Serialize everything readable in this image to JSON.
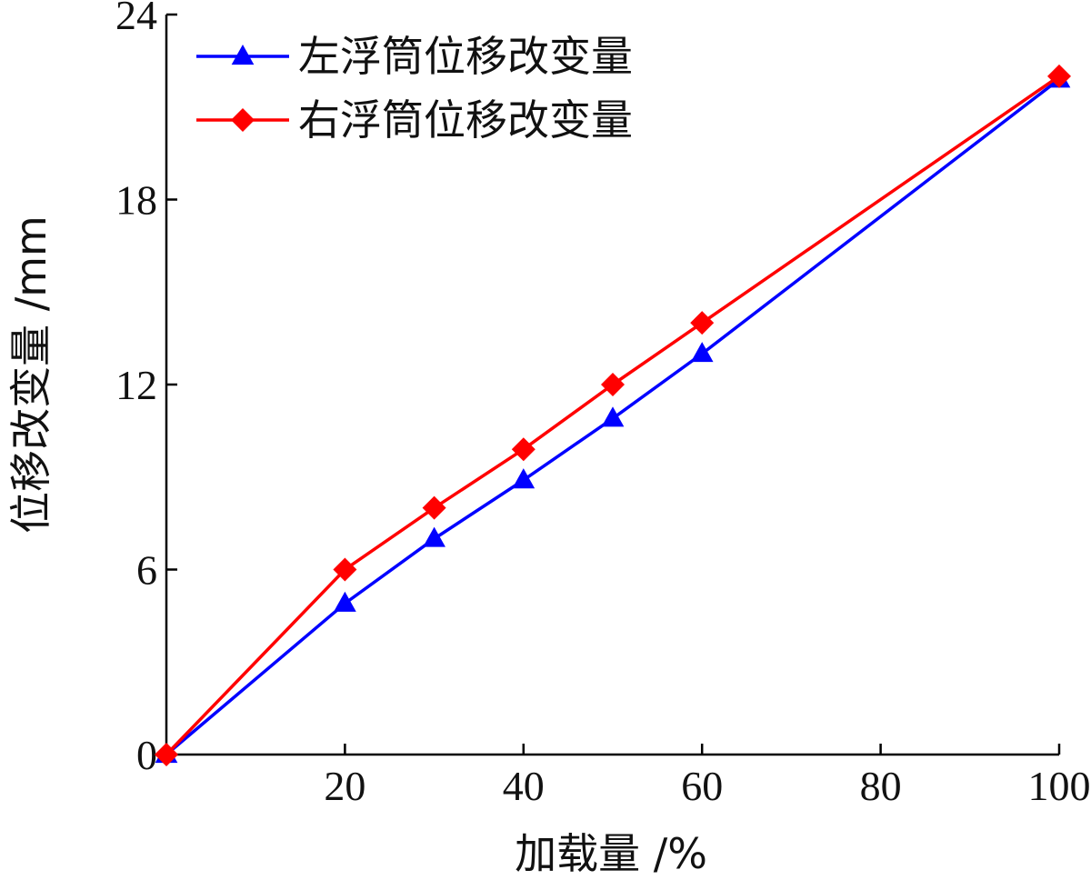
{
  "chart_data": {
    "type": "line",
    "xlabel": "加载量 /%",
    "ylabel": "位移改变量 /mm",
    "xlim": [
      0,
      100
    ],
    "ylim": [
      0,
      24
    ],
    "xticks": [
      20,
      40,
      60,
      80,
      100
    ],
    "yticks": [
      0,
      6,
      12,
      18,
      24
    ],
    "grid": false,
    "legend_position": "top-left",
    "series": [
      {
        "name": "左浮筒位移改变量",
        "color": "#0000ff",
        "marker": "triangle",
        "x": [
          0,
          20,
          30,
          40,
          50,
          60,
          100
        ],
        "y": [
          0,
          4.9,
          7.0,
          8.9,
          10.9,
          13.0,
          21.9
        ]
      },
      {
        "name": "右浮筒位移改变量",
        "color": "#ff0000",
        "marker": "diamond",
        "x": [
          0,
          20,
          30,
          40,
          50,
          60,
          100
        ],
        "y": [
          0,
          6.0,
          8.0,
          9.9,
          12.0,
          14.0,
          22.0
        ]
      }
    ]
  }
}
